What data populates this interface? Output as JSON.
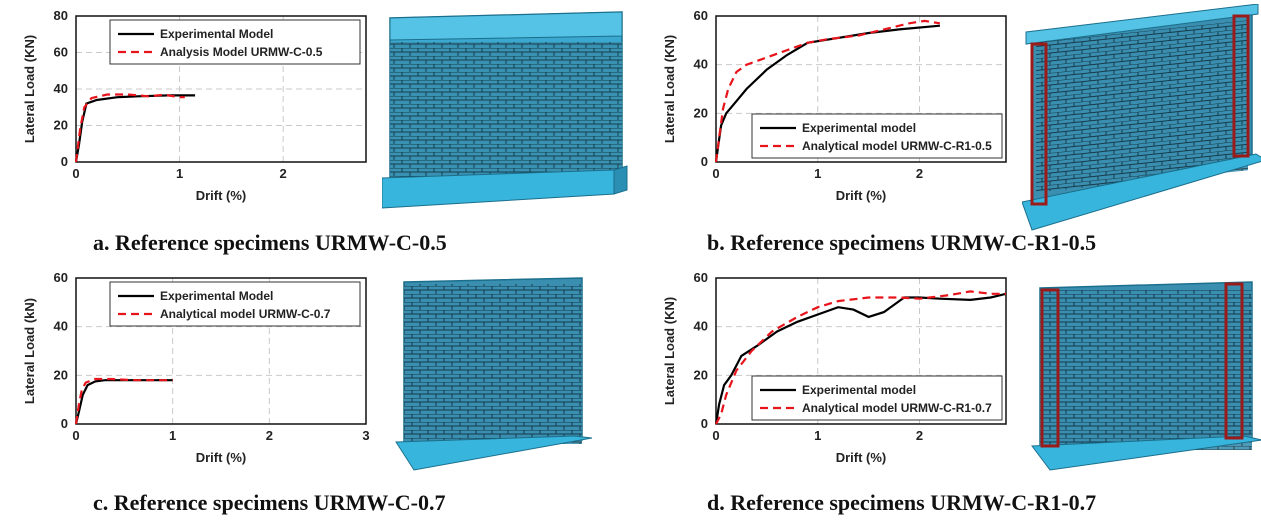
{
  "chart_data": [
    {
      "type": "line",
      "caption": "a. Reference specimens URMW-C-0.5",
      "xlabel": "Drift (%)",
      "ylabel": "Lateral Load (KN)",
      "xlim": [
        0,
        2.8
      ],
      "ylim": [
        0,
        80
      ],
      "xticks": [
        0,
        1,
        2
      ],
      "yticks": [
        0,
        20,
        40,
        60,
        80
      ],
      "grid": true,
      "legend": "top-right",
      "series": [
        {
          "name": "Experimental Model",
          "style": "solid",
          "color": "#000000",
          "points": [
            [
              0,
              0
            ],
            [
              0.03,
              10
            ],
            [
              0.06,
              22
            ],
            [
              0.1,
              32
            ],
            [
              0.2,
              34
            ],
            [
              0.4,
              35.5
            ],
            [
              0.6,
              36
            ],
            [
              0.9,
              36.5
            ],
            [
              1.15,
              36.5
            ]
          ]
        },
        {
          "name": "Analysis Model URMW-C-0.5",
          "style": "dashed",
          "color": "#e8141b",
          "points": [
            [
              0,
              0
            ],
            [
              0.04,
              18
            ],
            [
              0.08,
              30
            ],
            [
              0.15,
              35
            ],
            [
              0.3,
              37
            ],
            [
              0.5,
              37
            ],
            [
              0.7,
              36
            ],
            [
              0.85,
              36.8
            ],
            [
              1.0,
              35.5
            ],
            [
              1.05,
              35.5
            ]
          ]
        }
      ]
    },
    {
      "type": "line",
      "caption": "b. Reference specimens URMW-C-R1-0.5",
      "xlabel": "Drift (%)",
      "ylabel": "Lateral Load (KN)",
      "xlim": [
        0,
        2.85
      ],
      "ylim": [
        0,
        60
      ],
      "xticks": [
        0,
        1,
        2
      ],
      "yticks": [
        0,
        20,
        40,
        60
      ],
      "grid": true,
      "legend": "bottom-right",
      "series": [
        {
          "name": "Experimental model",
          "style": "solid",
          "color": "#000000",
          "points": [
            [
              0,
              0
            ],
            [
              0.02,
              6
            ],
            [
              0.05,
              15
            ],
            [
              0.1,
              20
            ],
            [
              0.2,
              25
            ],
            [
              0.3,
              30
            ],
            [
              0.5,
              38
            ],
            [
              0.7,
              44
            ],
            [
              0.9,
              49
            ],
            [
              1.2,
              51
            ],
            [
              1.5,
              53
            ],
            [
              1.8,
              54.5
            ],
            [
              2.2,
              56
            ]
          ]
        },
        {
          "name": "Analytical model URMW-C-R1-0.5",
          "style": "dashed",
          "color": "#e8141b",
          "points": [
            [
              0,
              0
            ],
            [
              0.03,
              10
            ],
            [
              0.07,
              22
            ],
            [
              0.12,
              30
            ],
            [
              0.2,
              37
            ],
            [
              0.3,
              40
            ],
            [
              0.5,
              43
            ],
            [
              0.7,
              46
            ],
            [
              0.9,
              49
            ],
            [
              1.1,
              50.5
            ],
            [
              1.4,
              52
            ],
            [
              1.7,
              55
            ],
            [
              1.9,
              57
            ],
            [
              2.05,
              58
            ],
            [
              2.2,
              57
            ]
          ]
        }
      ]
    },
    {
      "type": "line",
      "caption": "c. Reference specimens URMW-C-0.7",
      "xlabel": "Drift (%)",
      "ylabel": "Lateral Load (kN)",
      "xlim": [
        0,
        3
      ],
      "ylim": [
        0,
        60
      ],
      "xticks": [
        0,
        1,
        2,
        3
      ],
      "yticks": [
        0,
        20,
        40,
        60
      ],
      "grid": true,
      "legend": "top-right",
      "series": [
        {
          "name": "Experimental Model",
          "style": "solid",
          "color": "#000000",
          "points": [
            [
              0,
              0
            ],
            [
              0.03,
              5
            ],
            [
              0.07,
              12
            ],
            [
              0.12,
              16
            ],
            [
              0.2,
              17.5
            ],
            [
              0.3,
              18
            ],
            [
              0.6,
              18
            ],
            [
              1.0,
              18
            ]
          ]
        },
        {
          "name": "Analytical model URMW-C-0.7",
          "style": "dashed",
          "color": "#e8141b",
          "points": [
            [
              0,
              0
            ],
            [
              0.03,
              8
            ],
            [
              0.06,
              14
            ],
            [
              0.1,
              17
            ],
            [
              0.2,
              18.5
            ],
            [
              0.35,
              18.5
            ],
            [
              0.6,
              18
            ],
            [
              1.0,
              18
            ]
          ]
        }
      ]
    },
    {
      "type": "line",
      "caption": "d. Reference specimens URMW-C-R1-0.7",
      "xlabel": "Drift (%)",
      "ylabel": "Lateral Load (KN)",
      "xlim": [
        0,
        2.85
      ],
      "ylim": [
        0,
        60
      ],
      "xticks": [
        0,
        1,
        2
      ],
      "yticks": [
        0,
        20,
        40,
        60
      ],
      "grid": true,
      "legend": "bottom-right",
      "series": [
        {
          "name": "Experimental model",
          "style": "solid",
          "color": "#000000",
          "points": [
            [
              0,
              0
            ],
            [
              0.03,
              8
            ],
            [
              0.08,
              16
            ],
            [
              0.15,
              20
            ],
            [
              0.25,
              28
            ],
            [
              0.4,
              32
            ],
            [
              0.6,
              38
            ],
            [
              0.8,
              42
            ],
            [
              1.0,
              45
            ],
            [
              1.2,
              48
            ],
            [
              1.35,
              47
            ],
            [
              1.5,
              44
            ],
            [
              1.65,
              46
            ],
            [
              1.85,
              52
            ],
            [
              2.0,
              52
            ],
            [
              2.2,
              51.5
            ],
            [
              2.5,
              51
            ],
            [
              2.7,
              52
            ],
            [
              2.85,
              53.5
            ]
          ]
        },
        {
          "name": "Analytical model URMW-C-R1-0.7",
          "style": "dashed",
          "color": "#e8141b",
          "points": [
            [
              0,
              0
            ],
            [
              0.05,
              4
            ],
            [
              0.1,
              12
            ],
            [
              0.2,
              22
            ],
            [
              0.35,
              30
            ],
            [
              0.55,
              38
            ],
            [
              0.8,
              44
            ],
            [
              1.0,
              48
            ],
            [
              1.2,
              50.5
            ],
            [
              1.5,
              52
            ],
            [
              1.8,
              52
            ],
            [
              2.0,
              51.5
            ],
            [
              2.3,
              53
            ],
            [
              2.5,
              54.5
            ],
            [
              2.7,
              53.5
            ],
            [
              2.85,
              53.5
            ]
          ]
        }
      ]
    }
  ]
}
